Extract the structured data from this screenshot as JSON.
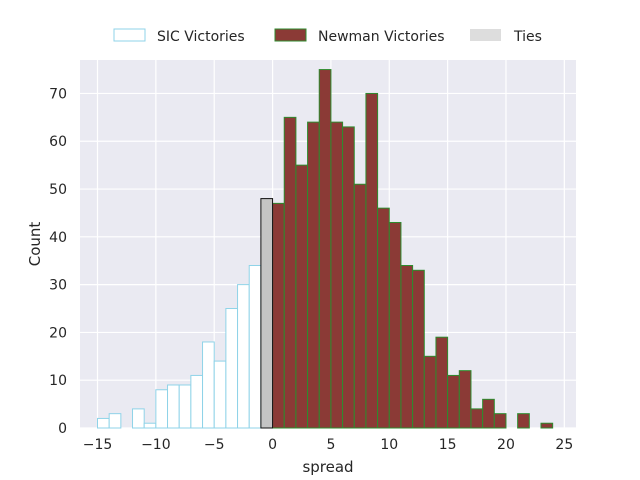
{
  "chart_data": {
    "type": "bar",
    "title": "",
    "xlabel": "spread",
    "ylabel": "Count",
    "xlim": [
      -16.5,
      26
    ],
    "ylim": [
      0,
      77
    ],
    "xticks": [
      -15,
      -10,
      -5,
      0,
      5,
      10,
      15,
      20,
      25
    ],
    "xtick_labels": [
      "−15",
      "−10",
      "−5",
      "0",
      "5",
      "10",
      "15",
      "20",
      "25"
    ],
    "yticks": [
      0,
      10,
      20,
      30,
      40,
      50,
      60,
      70
    ],
    "grid": true,
    "legend_position": "top-center",
    "bin_width": 1,
    "series": [
      {
        "name": "SIC Victories",
        "fill": "#ffffff",
        "edge": "#8fd3e8",
        "bins": [
          [
            -15,
            2
          ],
          [
            -14,
            3
          ],
          [
            -12,
            4
          ],
          [
            -11,
            1
          ],
          [
            -10,
            8
          ],
          [
            -9,
            9
          ],
          [
            -8,
            9
          ],
          [
            -7,
            11
          ],
          [
            -6,
            18
          ],
          [
            -5,
            14
          ],
          [
            -4,
            25
          ],
          [
            -3,
            30
          ],
          [
            -2,
            34
          ]
        ]
      },
      {
        "name": "Newman Victories",
        "fill": "#8b3a36",
        "edge": "#2e8b2e",
        "bins": [
          [
            0,
            47
          ],
          [
            1,
            65
          ],
          [
            2,
            55
          ],
          [
            3,
            64
          ],
          [
            4,
            75
          ],
          [
            5,
            64
          ],
          [
            6,
            63
          ],
          [
            7,
            51
          ],
          [
            8,
            70
          ],
          [
            9,
            46
          ],
          [
            10,
            43
          ],
          [
            11,
            34
          ],
          [
            12,
            33
          ],
          [
            13,
            15
          ],
          [
            14,
            19
          ],
          [
            15,
            11
          ],
          [
            16,
            12
          ],
          [
            17,
            4
          ],
          [
            18,
            6
          ],
          [
            19,
            3
          ],
          [
            21,
            3
          ],
          [
            23,
            1
          ]
        ]
      },
      {
        "name": "Ties",
        "fill": "#c4c4c4",
        "edge": "#111111",
        "legend_fill": "#dddddd",
        "bins": [
          [
            -1,
            48
          ]
        ]
      }
    ]
  }
}
